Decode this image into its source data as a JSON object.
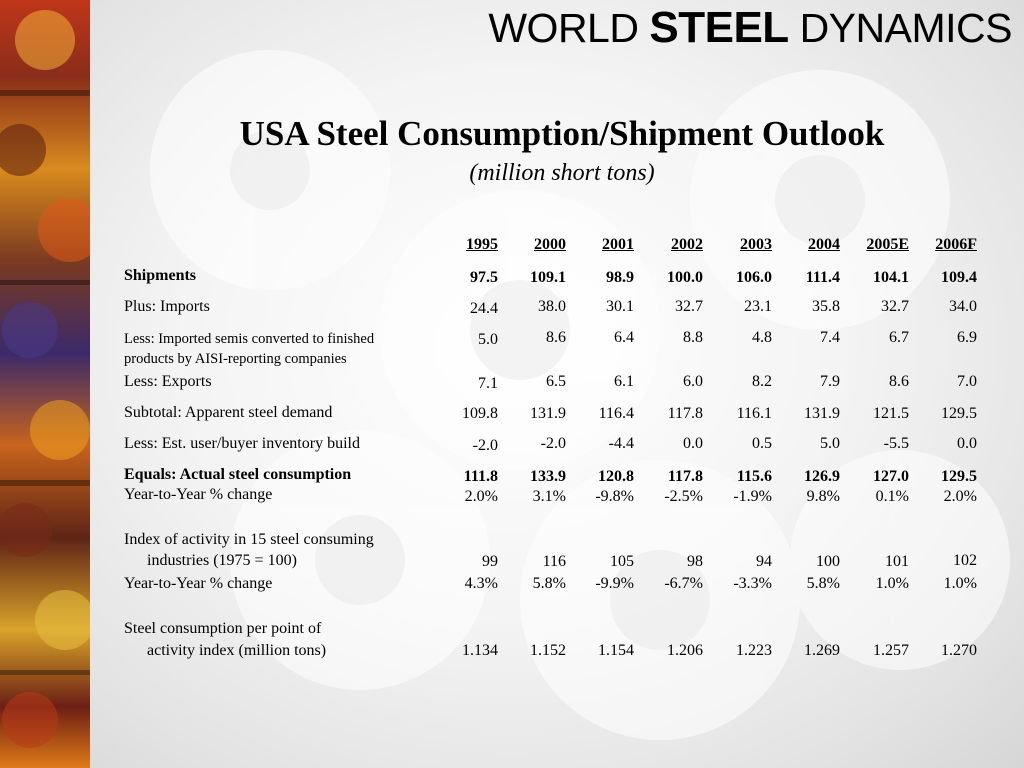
{
  "brand": {
    "part1": "WORLD",
    "part2": "STEEL",
    "part3": "DYNAMICS"
  },
  "title": "USA Steel Consumption/Shipment Outlook",
  "subtitle": "(million short tons)",
  "table": {
    "years": [
      "1995",
      "2000",
      "2001",
      "2002",
      "2003",
      "2004",
      "2005E",
      "2006F"
    ],
    "rows": [
      {
        "label": "Shipments",
        "values": [
          "97.5",
          "109.1",
          "98.9",
          "100.0",
          "106.0",
          "111.4",
          "104.1",
          "109.4"
        ]
      },
      {
        "label": "Plus: Imports",
        "values": [
          "24.4",
          "38.0",
          "30.1",
          "32.7",
          "23.1",
          "35.8",
          "32.7",
          "34.0"
        ]
      },
      {
        "label": "Less: Imported semis converted to finished",
        "label2": "products by AISI-reporting companies",
        "values": [
          "5.0",
          "8.6",
          "6.4",
          "8.8",
          "4.8",
          "7.4",
          "6.7",
          "6.9"
        ]
      },
      {
        "label": "Less: Exports",
        "values": [
          "7.1",
          "6.5",
          "6.1",
          "6.0",
          "8.2",
          "7.9",
          "8.6",
          "7.0"
        ]
      },
      {
        "label": "Subtotal: Apparent steel demand",
        "values": [
          "109.8",
          "131.9",
          "116.4",
          "117.8",
          "116.1",
          "131.9",
          "121.5",
          "129.5"
        ]
      },
      {
        "label": "Less: Est. user/buyer inventory build",
        "values": [
          "-2.0",
          "-2.0",
          "-4.4",
          "0.0",
          "0.5",
          "5.0",
          "-5.5",
          "0.0"
        ]
      },
      {
        "label": "Equals: Actual steel consumption",
        "values": [
          "111.8",
          "133.9",
          "120.8",
          "117.8",
          "115.6",
          "126.9",
          "127.0",
          "129.5"
        ]
      },
      {
        "label": "Year-to-Year % change",
        "values": [
          "2.0%",
          "3.1%",
          "-9.8%",
          "-2.5%",
          "-1.9%",
          "9.8%",
          "0.1%",
          "2.0%"
        ]
      },
      {
        "label": "Index of activity in 15 steel consuming",
        "label2": "industries (1975 = 100)",
        "values": [
          "99",
          "116",
          "105",
          "98",
          "94",
          "100",
          "101",
          "102"
        ]
      },
      {
        "label": "Year-to-Year % change",
        "values": [
          "4.3%",
          "5.8%",
          "-9.9%",
          "-6.7%",
          "-3.3%",
          "5.8%",
          "1.0%",
          "1.0%"
        ]
      },
      {
        "label": "Steel consumption per point of",
        "label2": "activity index (million tons)",
        "values": [
          "1.134",
          "1.152",
          "1.154",
          "1.206",
          "1.223",
          "1.269",
          "1.257",
          "1.270"
        ]
      }
    ]
  }
}
